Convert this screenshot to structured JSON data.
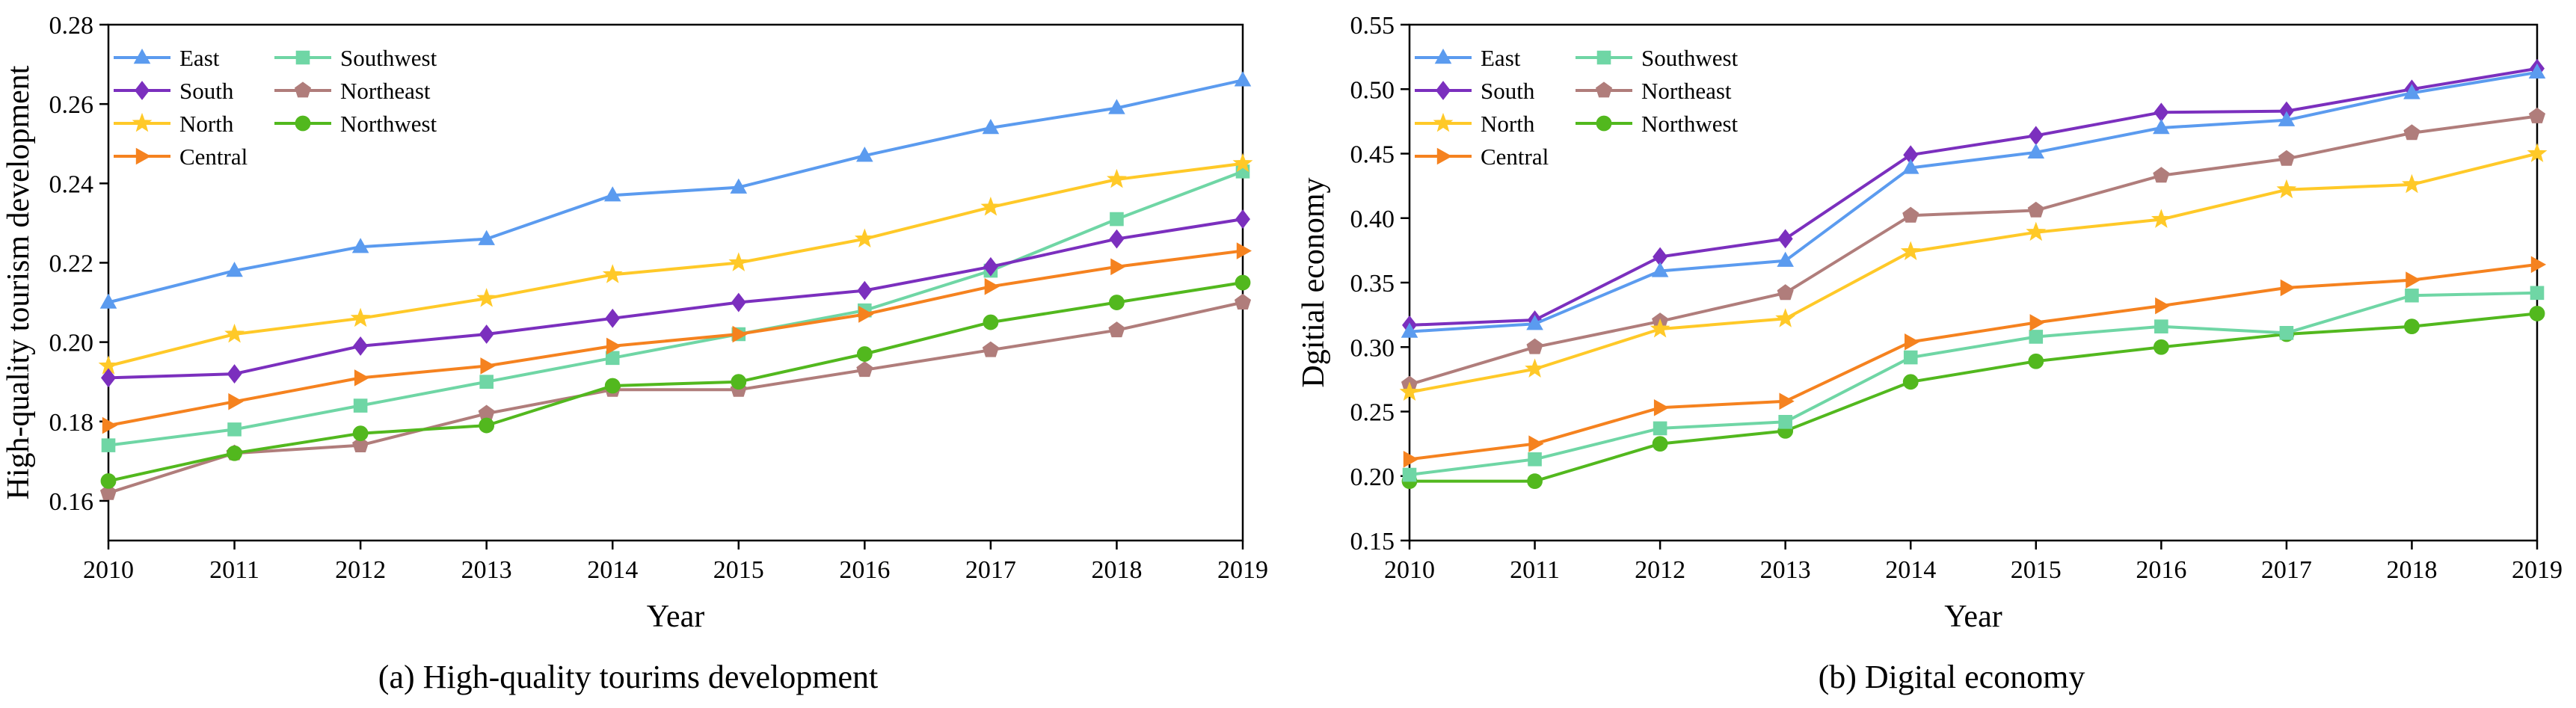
{
  "figure": {
    "panels": [
      {
        "caption": "(a) High-quality tourims development",
        "chart_key": 0
      },
      {
        "caption": "(b) Digital economy",
        "chart_key": 1
      }
    ]
  },
  "style": {
    "series_colors": {
      "East": "#5B9BEF",
      "South": "#7B2FBE",
      "North": "#FFC928",
      "Central": "#F5821F",
      "Southwest": "#6FD6A5",
      "Northeast": "#B07D7B",
      "Northwest": "#52B81E"
    },
    "series_markers": {
      "East": "triangle",
      "South": "diamond",
      "North": "star",
      "Central": "right-triangle",
      "Southwest": "square",
      "Northeast": "pentagon",
      "Northwest": "circle"
    }
  },
  "chart_data": [
    {
      "type": "line",
      "title": "",
      "xlabel": "Year",
      "ylabel": "High-quality tourism development",
      "categories": [
        "2010",
        "2011",
        "2012",
        "2013",
        "2014",
        "2015",
        "2016",
        "2017",
        "2018",
        "2019"
      ],
      "ylim": [
        0.15,
        0.28
      ],
      "yticks": [
        0.16,
        0.18,
        0.2,
        0.22,
        0.24,
        0.26,
        0.28
      ],
      "ytick_labels": [
        "0.16",
        "0.18",
        "0.20",
        "0.22",
        "0.24",
        "0.26",
        "0.28"
      ],
      "grid": false,
      "legend_position": "top-left",
      "series": [
        {
          "name": "East",
          "values": [
            0.21,
            0.218,
            0.224,
            0.226,
            0.237,
            0.239,
            0.247,
            0.254,
            0.259,
            0.266
          ]
        },
        {
          "name": "South",
          "values": [
            0.191,
            0.192,
            0.199,
            0.202,
            0.206,
            0.21,
            0.213,
            0.219,
            0.226,
            0.231
          ]
        },
        {
          "name": "North",
          "values": [
            0.194,
            0.202,
            0.206,
            0.211,
            0.217,
            0.22,
            0.226,
            0.234,
            0.241,
            0.245
          ]
        },
        {
          "name": "Central",
          "values": [
            0.179,
            0.185,
            0.191,
            0.194,
            0.199,
            0.202,
            0.207,
            0.214,
            0.219,
            0.223
          ]
        },
        {
          "name": "Southwest",
          "values": [
            0.174,
            0.178,
            0.184,
            0.19,
            0.196,
            0.202,
            0.208,
            0.218,
            0.231,
            0.243
          ]
        },
        {
          "name": "Northeast",
          "values": [
            0.162,
            0.172,
            0.174,
            0.182,
            0.188,
            0.188,
            0.193,
            0.198,
            0.203,
            0.21
          ]
        },
        {
          "name": "Northwest",
          "values": [
            0.165,
            0.172,
            0.177,
            0.179,
            0.189,
            0.19,
            0.197,
            0.205,
            0.21,
            0.215
          ]
        }
      ]
    },
    {
      "type": "line",
      "title": "",
      "xlabel": "Year",
      "ylabel": "Dgitial economy",
      "categories": [
        "2010",
        "2011",
        "2012",
        "2013",
        "2014",
        "2015",
        "2016",
        "2017",
        "2018",
        "2019"
      ],
      "ylim": [
        0.15,
        0.55
      ],
      "yticks": [
        0.15,
        0.2,
        0.25,
        0.3,
        0.35,
        0.4,
        0.45,
        0.5,
        0.55
      ],
      "ytick_labels": [
        "0.15",
        "0.20",
        "0.25",
        "0.30",
        "0.35",
        "0.40",
        "0.45",
        "0.50",
        "0.55"
      ],
      "grid": false,
      "legend_position": "top-left",
      "series": [
        {
          "name": "East",
          "values": [
            0.312,
            0.318,
            0.359,
            0.367,
            0.439,
            0.451,
            0.47,
            0.476,
            0.497,
            0.513
          ]
        },
        {
          "name": "South",
          "values": [
            0.317,
            0.321,
            0.37,
            0.384,
            0.449,
            0.464,
            0.482,
            0.483,
            0.5,
            0.516
          ]
        },
        {
          "name": "North",
          "values": [
            0.265,
            0.283,
            0.314,
            0.322,
            0.374,
            0.389,
            0.399,
            0.422,
            0.426,
            0.45
          ]
        },
        {
          "name": "Central",
          "values": [
            0.213,
            0.225,
            0.253,
            0.258,
            0.304,
            0.319,
            0.332,
            0.346,
            0.352,
            0.364
          ]
        },
        {
          "name": "Southwest",
          "values": [
            0.201,
            0.213,
            0.237,
            0.242,
            0.292,
            0.308,
            0.316,
            0.311,
            0.34,
            0.342
          ]
        },
        {
          "name": "Northeast",
          "values": [
            0.271,
            0.3,
            0.32,
            0.342,
            0.402,
            0.406,
            0.433,
            0.446,
            0.466,
            0.479
          ]
        },
        {
          "name": "Northwest",
          "values": [
            0.196,
            0.196,
            0.225,
            0.235,
            0.273,
            0.289,
            0.3,
            0.31,
            0.316,
            0.326
          ]
        }
      ]
    }
  ]
}
